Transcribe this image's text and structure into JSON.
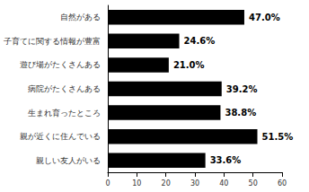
{
  "chart_data": {
    "type": "bar",
    "orientation": "horizontal",
    "categories": [
      "自然がある",
      "子育てに関する情報が豊富",
      "遊び場がたくさんある",
      "病院がたくさんある",
      "生まれ育ったところ",
      "親が近くに住んでいる",
      "親しい友人がいる"
    ],
    "values": [
      47.0,
      24.6,
      21.0,
      39.2,
      38.8,
      51.5,
      33.6
    ],
    "value_labels": [
      "47.0%",
      "24.6%",
      "21.0%",
      "39.2%",
      "38.8%",
      "51.5%",
      "33.6%"
    ],
    "color": "#000000",
    "xlim": [
      0,
      60
    ],
    "xticks": [
      0,
      10,
      20,
      30,
      40,
      50,
      60
    ],
    "grid": false,
    "data_labels": true
  }
}
